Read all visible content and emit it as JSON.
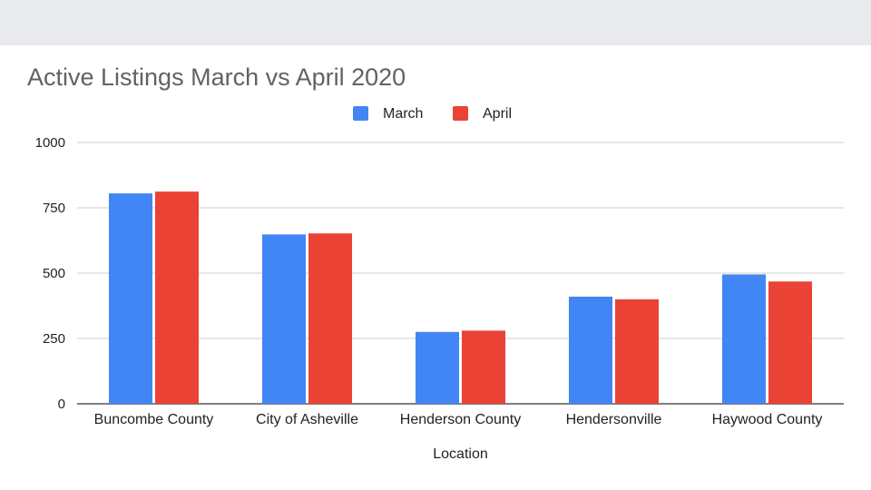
{
  "chart_data": {
    "type": "bar",
    "title": "Active Listings March vs April 2020",
    "xlabel": "Location",
    "ylabel": "",
    "ylim": [
      0,
      1000
    ],
    "yticks": [
      0,
      250,
      500,
      750,
      1000
    ],
    "categories": [
      "Buncombe County",
      "City of Asheville",
      "Henderson County",
      "Hendersonville",
      "Haywood County"
    ],
    "series": [
      {
        "name": "March",
        "color": "#4285f4",
        "values": [
          805,
          648,
          275,
          410,
          495
        ]
      },
      {
        "name": "April",
        "color": "#ea4335",
        "values": [
          812,
          652,
          280,
          400,
          468
        ]
      }
    ],
    "legend_position": "top-center",
    "grid": true
  }
}
